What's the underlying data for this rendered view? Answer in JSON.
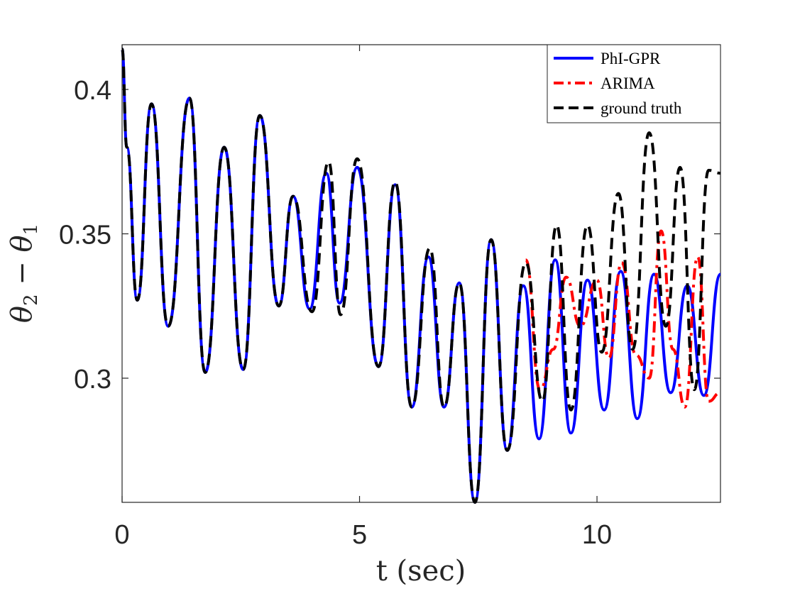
{
  "chart_data": {
    "type": "line",
    "title": "",
    "xlabel": "t (sec)",
    "ylabel_tex": "θ2 − θ1",
    "ylabel": {
      "theta": "θ",
      "sub_a": "2",
      "minus": " − ",
      "sub_b": "1"
    },
    "xlim": [
      0,
      12.6
    ],
    "ylim": [
      0.257,
      0.4155
    ],
    "xticks": [
      0,
      5,
      10
    ],
    "xtick_labels": [
      "0",
      "5",
      "10"
    ],
    "yticks": [
      0.3,
      0.35,
      0.4
    ],
    "ytick_labels": [
      "0.3",
      "0.35",
      "0.4"
    ],
    "grid": false,
    "legend_position": "top-right",
    "series": [
      {
        "name": "PhI-GPR",
        "color": "#0000ff",
        "style": "solid",
        "x": [
          0,
          0.1,
          0.32,
          0.62,
          0.97,
          1.42,
          1.75,
          2.15,
          2.55,
          2.9,
          3.3,
          3.6,
          3.95,
          4.3,
          4.58,
          4.95,
          5.4,
          5.75,
          6.1,
          6.45,
          6.78,
          7.1,
          7.43,
          7.77,
          8.11,
          8.45,
          8.78,
          9.12,
          9.45,
          9.8,
          10.15,
          10.5,
          10.85,
          11.2,
          11.55,
          11.9,
          12.25,
          12.6
        ],
        "y": [
          0.414,
          0.38,
          0.327,
          0.395,
          0.318,
          0.397,
          0.302,
          0.38,
          0.303,
          0.391,
          0.325,
          0.363,
          0.324,
          0.371,
          0.326,
          0.373,
          0.304,
          0.367,
          0.29,
          0.342,
          0.29,
          0.333,
          0.257,
          0.348,
          0.275,
          0.332,
          0.279,
          0.341,
          0.281,
          0.334,
          0.289,
          0.337,
          0.286,
          0.336,
          0.295,
          0.332,
          0.294,
          0.336
        ]
      },
      {
        "name": "ARIMA",
        "color": "#ff0000",
        "style": "dashdot",
        "x": [
          8.5,
          8.8,
          9.08,
          9.35,
          9.65,
          10.0,
          10.25,
          10.52,
          10.82,
          11.1,
          11.35,
          11.6,
          11.85,
          12.12,
          12.35,
          12.6
        ],
        "y": [
          0.341,
          0.296,
          0.31,
          0.335,
          0.318,
          0.334,
          0.307,
          0.34,
          0.308,
          0.3,
          0.351,
          0.31,
          0.29,
          0.342,
          0.292,
          0.295
        ]
      },
      {
        "name": "ground truth",
        "color": "#000000",
        "style": "dashed",
        "x": [
          0,
          0.1,
          0.32,
          0.62,
          0.97,
          1.42,
          1.75,
          2.15,
          2.55,
          2.9,
          3.3,
          3.6,
          4.0,
          4.35,
          4.6,
          4.95,
          5.4,
          5.75,
          6.1,
          6.48,
          6.78,
          7.1,
          7.43,
          7.77,
          8.11,
          8.5,
          8.85,
          9.15,
          9.45,
          9.8,
          10.1,
          10.45,
          10.75,
          11.1,
          11.45,
          11.75,
          12.05,
          12.35,
          12.6
        ],
        "y": [
          0.414,
          0.38,
          0.327,
          0.395,
          0.318,
          0.397,
          0.302,
          0.38,
          0.303,
          0.391,
          0.325,
          0.363,
          0.323,
          0.375,
          0.322,
          0.376,
          0.304,
          0.368,
          0.29,
          0.345,
          0.29,
          0.333,
          0.257,
          0.348,
          0.275,
          0.34,
          0.292,
          0.353,
          0.289,
          0.353,
          0.309,
          0.364,
          0.31,
          0.385,
          0.318,
          0.373,
          0.296,
          0.372,
          0.371
        ]
      }
    ]
  }
}
